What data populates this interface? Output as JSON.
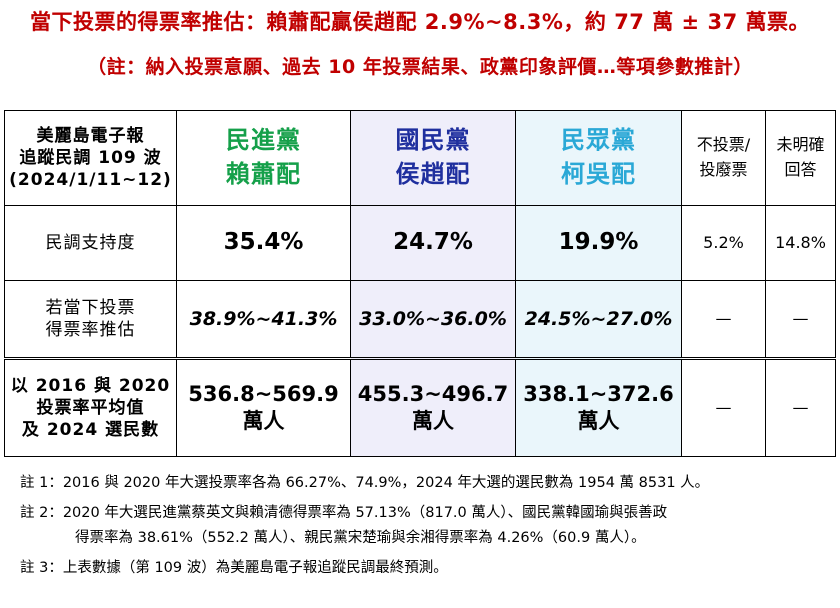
{
  "title": "當下投票的得票率推估：賴蕭配贏侯趙配 2.9%~8.3%，約 77 萬 ± 37 萬票。",
  "subtitle": "（註：納入投票意願、過去 10 年投票結果、政黨印象評價…等項參數推計）",
  "table": {
    "corner": [
      "美麗島電子報",
      "追蹤民調 109 波",
      "(2024/1/11~12)"
    ],
    "columns": {
      "dpp": [
        "民進黨",
        "賴蕭配"
      ],
      "kmt": [
        "國民黨",
        "侯趙配"
      ],
      "tpp": [
        "民眾黨",
        "柯吳配"
      ],
      "novote": [
        "不投票/",
        "投廢票"
      ],
      "undecided": [
        "未明確",
        "回答"
      ]
    },
    "rows": {
      "support": {
        "label": "民調支持度",
        "dpp": "35.4%",
        "kmt": "24.7%",
        "tpp": "19.9%",
        "novote": "5.2%",
        "undecided": "14.8%"
      },
      "rate": {
        "label": [
          "若當下投票",
          "得票率推估"
        ],
        "dpp": "38.9%~41.3%",
        "kmt": "33.0%~36.0%",
        "tpp": "24.5%~27.0%",
        "novote": "—",
        "undecided": "—"
      },
      "votes": {
        "label": [
          "以 2016 與 2020",
          "投票率平均值",
          "及 2024 選民數"
        ],
        "dpp": [
          "536.8~569.9",
          "萬人"
        ],
        "kmt": [
          "455.3~496.7",
          "萬人"
        ],
        "tpp": [
          "338.1~372.6",
          "萬人"
        ],
        "novote": "—",
        "undecided": "—"
      }
    }
  },
  "notes": {
    "n1": "註 1：2016 與 2020 年大選投票率各為 66.27%、74.9%，2024 年大選的選民數為 1954 萬 8531 人。",
    "n2a": "註 2：2020 年大選民進黨蔡英文與賴清德得票率為 57.13%（817.0 萬人）、國民黨韓國瑜與張善政",
    "n2b": "得票率為 38.61%（552.2 萬人）、親民黨宋楚瑜與余湘得票率為 4.26%（60.9 萬人）。",
    "n3": "註 3：上表數據（第 109 波）為美麗島電子報追蹤民調最終預測。"
  },
  "colors": {
    "title": "#c00000",
    "dpp": "#15a04a",
    "kmt": "#1f2f9e",
    "tpp": "#2aa8d6",
    "kmt_bg": "#efeefa",
    "tpp_bg": "#eaf6fb"
  }
}
